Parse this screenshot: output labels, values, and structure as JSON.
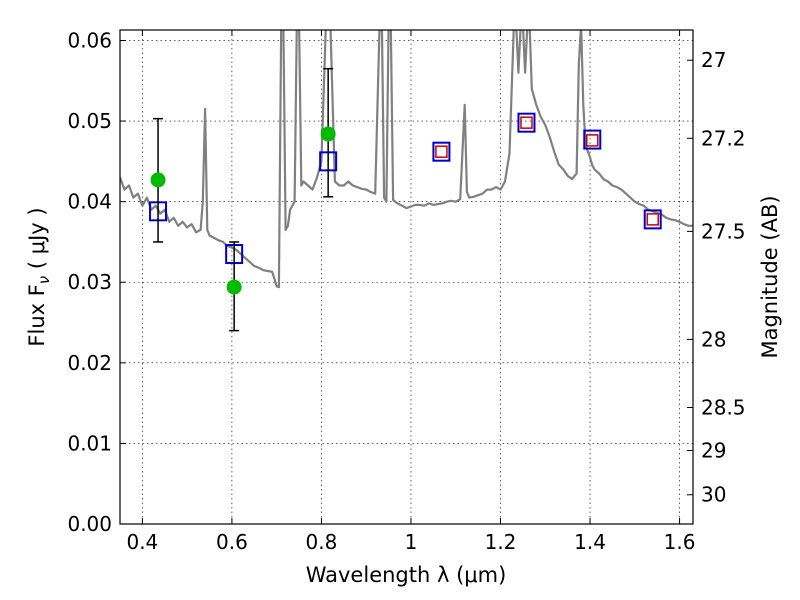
{
  "chart_data": {
    "type": "scatter",
    "xlabel": "Wavelength  λ (μm)",
    "ylabel": "Flux  F",
    "ylabel_sub": "ν",
    "ylabel_unit": "  ( μJy )",
    "y2label": "Magnitude (AB)",
    "xlim": [
      0.35,
      1.63
    ],
    "ylim": [
      0.0,
      0.0613
    ],
    "grid": true,
    "x_ticks": [
      {
        "value": 0.4,
        "label": "0.4"
      },
      {
        "value": 0.6,
        "label": "0.6"
      },
      {
        "value": 0.8,
        "label": "0.8"
      },
      {
        "value": 1.0,
        "label": "1"
      },
      {
        "value": 1.2,
        "label": "1.2"
      },
      {
        "value": 1.4,
        "label": "1.4"
      },
      {
        "value": 1.6,
        "label": "1.6"
      }
    ],
    "y_ticks": [
      {
        "value": 0.0,
        "label": "0.00"
      },
      {
        "value": 0.01,
        "label": "0.01"
      },
      {
        "value": 0.02,
        "label": "0.02"
      },
      {
        "value": 0.03,
        "label": "0.03"
      },
      {
        "value": 0.04,
        "label": "0.04"
      },
      {
        "value": 0.05,
        "label": "0.05"
      },
      {
        "value": 0.06,
        "label": "0.06"
      }
    ],
    "y2_ticks": [
      {
        "value": 27,
        "label": "27"
      },
      {
        "value": 27.2,
        "label": "27.2"
      },
      {
        "value": 27.5,
        "label": "27.5"
      },
      {
        "value": 28,
        "label": "28"
      },
      {
        "value": 28.5,
        "label": "28.5"
      },
      {
        "value": 29,
        "label": "29"
      },
      {
        "value": 30,
        "label": "30"
      }
    ],
    "series": [
      {
        "kind": "spectrum",
        "color": "#808080",
        "x": [
          0.35,
          0.36,
          0.37,
          0.38,
          0.39,
          0.4,
          0.41,
          0.42,
          0.43,
          0.44,
          0.45,
          0.46,
          0.47,
          0.48,
          0.49,
          0.5,
          0.51,
          0.52,
          0.53,
          0.535,
          0.54,
          0.545,
          0.55,
          0.56,
          0.57,
          0.58,
          0.59,
          0.6,
          0.61,
          0.62,
          0.63,
          0.64,
          0.65,
          0.66,
          0.67,
          0.68,
          0.69,
          0.7,
          0.705,
          0.71,
          0.715,
          0.72,
          0.725,
          0.73,
          0.74,
          0.745,
          0.75,
          0.755,
          0.76,
          0.77,
          0.78,
          0.79,
          0.8,
          0.81,
          0.82,
          0.83,
          0.84,
          0.85,
          0.86,
          0.87,
          0.88,
          0.89,
          0.9,
          0.91,
          0.92,
          0.93,
          0.935,
          0.94,
          0.945,
          0.95,
          0.955,
          0.96,
          0.965,
          0.97,
          0.98,
          0.99,
          1.0,
          1.01,
          1.02,
          1.03,
          1.04,
          1.05,
          1.06,
          1.07,
          1.08,
          1.09,
          1.1,
          1.11,
          1.12,
          1.125,
          1.13,
          1.14,
          1.15,
          1.16,
          1.17,
          1.18,
          1.19,
          1.2,
          1.21,
          1.22,
          1.23,
          1.235,
          1.24,
          1.245,
          1.25,
          1.255,
          1.26,
          1.265,
          1.27,
          1.28,
          1.29,
          1.3,
          1.31,
          1.32,
          1.33,
          1.34,
          1.35,
          1.36,
          1.37,
          1.375,
          1.38,
          1.385,
          1.39,
          1.4,
          1.405,
          1.41,
          1.42,
          1.43,
          1.44,
          1.45,
          1.46,
          1.47,
          1.48,
          1.49,
          1.5,
          1.51,
          1.52,
          1.53,
          1.54,
          1.55,
          1.56,
          1.57,
          1.58,
          1.59,
          1.6,
          1.61,
          1.62,
          1.63
        ],
        "y": [
          0.043,
          0.0415,
          0.042,
          0.0405,
          0.041,
          0.0395,
          0.0405,
          0.039,
          0.0395,
          0.0385,
          0.039,
          0.0375,
          0.038,
          0.037,
          0.0375,
          0.0368,
          0.0372,
          0.0362,
          0.0365,
          0.04,
          0.0515,
          0.0365,
          0.0358,
          0.0355,
          0.0352,
          0.035,
          0.0345,
          0.0343,
          0.034,
          0.0335,
          0.033,
          0.0325,
          0.032,
          0.0318,
          0.0315,
          0.0314,
          0.0313,
          0.0295,
          0.0294,
          0.062,
          0.062,
          0.0365,
          0.037,
          0.039,
          0.04,
          0.062,
          0.062,
          0.042,
          0.0425,
          0.042,
          0.0415,
          0.043,
          0.045,
          0.062,
          0.062,
          0.0425,
          0.042,
          0.042,
          0.0425,
          0.042,
          0.0418,
          0.0416,
          0.0415,
          0.0412,
          0.041,
          0.062,
          0.062,
          0.0405,
          0.04,
          0.062,
          0.062,
          0.0402,
          0.04,
          0.0398,
          0.0395,
          0.0392,
          0.0394,
          0.0396,
          0.0396,
          0.0395,
          0.0398,
          0.0396,
          0.0397,
          0.0398,
          0.04,
          0.0401,
          0.04,
          0.0403,
          0.052,
          0.0412,
          0.0405,
          0.0406,
          0.0408,
          0.041,
          0.0415,
          0.0415,
          0.0418,
          0.0415,
          0.0425,
          0.046,
          0.062,
          0.062,
          0.056,
          0.062,
          0.062,
          0.056,
          0.062,
          0.062,
          0.054,
          0.052,
          0.0505,
          0.0495,
          0.048,
          0.0462,
          0.0446,
          0.044,
          0.0432,
          0.0428,
          0.0435,
          0.057,
          0.062,
          0.052,
          0.047,
          0.0455,
          0.0445,
          0.044,
          0.0435,
          0.0428,
          0.0425,
          0.042,
          0.0418,
          0.0415,
          0.041,
          0.0405,
          0.04,
          0.0397,
          0.0395,
          0.039,
          0.0388,
          0.0386,
          0.0384,
          0.038,
          0.0378,
          0.0377,
          0.0375,
          0.0372,
          0.037,
          0.037
        ]
      },
      {
        "kind": "model_boxes",
        "marker": "square-open",
        "color": "#0000cc",
        "x": [
          0.435,
          0.605,
          0.815,
          1.068,
          1.258,
          1.405,
          1.54
        ],
        "y": [
          0.0388,
          0.0335,
          0.045,
          0.0462,
          0.0498,
          0.0477,
          0.0378
        ]
      },
      {
        "kind": "observed_small",
        "marker": "square-open",
        "color": "#cc0000",
        "x": [
          1.068,
          1.258,
          1.405,
          1.54
        ],
        "y": [
          0.0462,
          0.0498,
          0.0476,
          0.0378
        ]
      },
      {
        "kind": "observed_points",
        "marker": "circle",
        "color": "#00bb00",
        "x": [
          0.435,
          0.605,
          0.815
        ],
        "y": [
          0.0427,
          0.0294,
          0.0484
        ],
        "err_low": [
          0.035,
          0.024,
          0.0406
        ],
        "err_high": [
          0.0503,
          0.035,
          0.0565
        ]
      }
    ]
  }
}
